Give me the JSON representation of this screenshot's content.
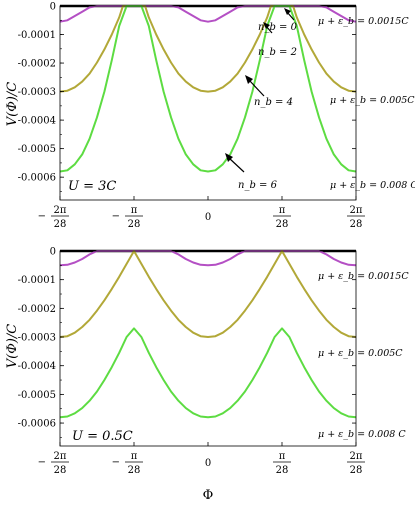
{
  "colors": {
    "series_nb0": "#b44fc4",
    "series_mid": "#b2a838",
    "series_high": "#5ddc42",
    "zero_line": "#000000"
  },
  "chart_data": [
    {
      "type": "line",
      "panel": "top",
      "xlabel": "",
      "ylabel": "V(Φ)/C",
      "x_ticks": [
        "-2π/28",
        "-π/28",
        "0",
        "π/28",
        "2π/28"
      ],
      "x_tick_values": [
        -2,
        -1,
        0,
        1,
        2
      ],
      "y_ticks": [
        "0",
        "-0.0001",
        "-0.0002",
        "-0.0003",
        "-0.0004",
        "-0.0005",
        "-0.0006"
      ],
      "y_tick_values": [
        0,
        -0.0001,
        -0.0002,
        -0.0003,
        -0.0004,
        -0.0005,
        -0.0006
      ],
      "xlim": [
        -2,
        2
      ],
      "ylim": [
        -0.00068,
        0
      ],
      "panel_label": "U = 3C",
      "annotations": [
        {
          "text": "n_b = 0"
        },
        {
          "text": "n_b = 2"
        },
        {
          "text": "n_b = 4"
        },
        {
          "text": "n_b = 6"
        }
      ],
      "series_labels": [
        "μ + ε_b = 0.0015C",
        "μ + ε_b = 0.005C",
        "μ + ε_b = 0.008 C"
      ],
      "series": [
        {
          "color": "#b44fc4",
          "x": [
            -2,
            -1.9,
            -1.8,
            -1.7,
            -1.6,
            -1.5,
            -1,
            -0.5,
            -0.4,
            -0.3,
            -0.2,
            -0.1,
            0,
            0.1,
            0.2,
            0.3,
            0.4,
            0.5,
            1,
            1.5,
            1.6,
            1.7,
            1.8,
            1.9,
            2
          ],
          "y": [
            -5.5e-05,
            -5e-05,
            -3.5e-05,
            -2e-05,
            -5e-06,
            0,
            0,
            0,
            -5e-06,
            -2e-05,
            -3.5e-05,
            -5e-05,
            -5.5e-05,
            -5e-05,
            -3.5e-05,
            -2e-05,
            -5e-06,
            0,
            0,
            0,
            -5e-06,
            -2e-05,
            -3.5e-05,
            -5e-05,
            -5.5e-05
          ]
        },
        {
          "color": "#b2a838",
          "x": [
            -2,
            -1.9,
            -1.8,
            -1.7,
            -1.6,
            -1.5,
            -1.4,
            -1.3,
            -1.2,
            -1.15,
            -1,
            -0.85,
            -0.8,
            -0.7,
            -0.6,
            -0.5,
            -0.4,
            -0.3,
            -0.2,
            -0.1,
            0,
            0.1,
            0.2,
            0.3,
            0.4,
            0.5,
            0.6,
            0.7,
            0.8,
            0.85,
            1,
            1.15,
            1.2,
            1.3,
            1.4,
            1.5,
            1.6,
            1.7,
            1.8,
            1.9,
            2
          ],
          "y": [
            -0.0003,
            -0.000297,
            -0.000285,
            -0.000265,
            -0.000237,
            -0.000198,
            -0.000152,
            -0.0001,
            -4e-05,
            0,
            0,
            0,
            -4e-05,
            -0.0001,
            -0.000152,
            -0.000198,
            -0.000237,
            -0.000265,
            -0.000285,
            -0.000297,
            -0.0003,
            -0.000297,
            -0.000285,
            -0.000265,
            -0.000237,
            -0.000198,
            -0.000152,
            -0.0001,
            -4e-05,
            0,
            0,
            0,
            -4e-05,
            -0.0001,
            -0.000152,
            -0.000198,
            -0.000237,
            -0.000265,
            -0.000285,
            -0.000297,
            -0.0003
          ]
        },
        {
          "color": "#5ddc42",
          "x": [
            -2,
            -1.9,
            -1.8,
            -1.7,
            -1.6,
            -1.5,
            -1.4,
            -1.3,
            -1.2,
            -1.1,
            -1,
            -0.9,
            -0.8,
            -0.7,
            -0.6,
            -0.5,
            -0.4,
            -0.3,
            -0.2,
            -0.1,
            0,
            0.1,
            0.2,
            0.3,
            0.4,
            0.5,
            0.6,
            0.7,
            0.8,
            0.9,
            1,
            1.1,
            1.2,
            1.3,
            1.4,
            1.5,
            1.6,
            1.7,
            1.8,
            1.9,
            2
          ],
          "y": [
            -0.00058,
            -0.000576,
            -0.000555,
            -0.00052,
            -0.000465,
            -0.00039,
            -0.0003,
            -0.00019,
            -7e-05,
            0,
            0,
            0,
            -7e-05,
            -0.00019,
            -0.0003,
            -0.00039,
            -0.000465,
            -0.00052,
            -0.000555,
            -0.000576,
            -0.00058,
            -0.000576,
            -0.000555,
            -0.00052,
            -0.000465,
            -0.00039,
            -0.0003,
            -0.00019,
            -7e-05,
            0,
            0,
            0,
            -7e-05,
            -0.00019,
            -0.0003,
            -0.00039,
            -0.000465,
            -0.00052,
            -0.000555,
            -0.000576,
            -0.00058
          ]
        }
      ]
    },
    {
      "type": "line",
      "panel": "bottom",
      "xlabel": "Φ",
      "ylabel": "V(Φ)/C",
      "x_ticks": [
        "-2π/28",
        "-π/28",
        "0",
        "π/28",
        "2π/28"
      ],
      "x_tick_values": [
        -2,
        -1,
        0,
        1,
        2
      ],
      "y_ticks": [
        "0",
        "-0.0001",
        "-0.0002",
        "-0.0003",
        "-0.0004",
        "-0.0005",
        "-0.0006"
      ],
      "y_tick_values": [
        0,
        -0.0001,
        -0.0002,
        -0.0003,
        -0.0004,
        -0.0005,
        -0.0006
      ],
      "xlim": [
        -2,
        2
      ],
      "ylim": [
        -0.00068,
        0
      ],
      "panel_label": "U = 0.5C",
      "series_labels": [
        "μ + ε_b = 0.0015C",
        "μ + ε_b = 0.005C",
        "μ + ε_b = 0.008 C"
      ],
      "series": [
        {
          "color": "#b44fc4",
          "x": [
            -2,
            -1.9,
            -1.8,
            -1.7,
            -1.6,
            -1.5,
            -1.4,
            -1.3,
            -1.2,
            -1.1,
            -1,
            -0.9,
            -0.8,
            -0.7,
            -0.6,
            -0.5,
            -0.4,
            -0.3,
            -0.2,
            -0.1,
            0,
            0.1,
            0.2,
            0.3,
            0.4,
            0.5,
            0.6,
            0.7,
            0.8,
            0.9,
            1,
            1.1,
            1.2,
            1.3,
            1.4,
            1.5,
            1.6,
            1.7,
            1.8,
            1.9,
            2
          ],
          "y": [
            -5e-05,
            -4.8e-05,
            -4e-05,
            -2.8e-05,
            -1.2e-05,
            0,
            0,
            0,
            0,
            0,
            0,
            0,
            0,
            0,
            0,
            0,
            -1.2e-05,
            -2.8e-05,
            -4e-05,
            -4.8e-05,
            -5e-05,
            -4.8e-05,
            -4e-05,
            -2.8e-05,
            -1.2e-05,
            0,
            0,
            0,
            0,
            0,
            0,
            0,
            0,
            0,
            0,
            0,
            -1.2e-05,
            -2.8e-05,
            -4e-05,
            -4.8e-05,
            -5e-05
          ]
        },
        {
          "color": "#b2a838",
          "x": [
            -2,
            -1.9,
            -1.8,
            -1.7,
            -1.6,
            -1.5,
            -1.4,
            -1.3,
            -1.2,
            -1.1,
            -1,
            -0.9,
            -0.8,
            -0.7,
            -0.6,
            -0.5,
            -0.4,
            -0.3,
            -0.2,
            -0.1,
            0,
            0.1,
            0.2,
            0.3,
            0.4,
            0.5,
            0.6,
            0.7,
            0.8,
            0.9,
            1,
            1.1,
            1.2,
            1.3,
            1.4,
            1.5,
            1.6,
            1.7,
            1.8,
            1.9,
            2
          ],
          "y": [
            -0.0003,
            -0.000297,
            -0.000285,
            -0.000265,
            -0.00024,
            -0.000208,
            -0.000172,
            -0.000132,
            -9e-05,
            -4.5e-05,
            0,
            -4.5e-05,
            -9e-05,
            -0.000132,
            -0.000172,
            -0.000208,
            -0.00024,
            -0.000265,
            -0.000285,
            -0.000297,
            -0.0003,
            -0.000297,
            -0.000285,
            -0.000265,
            -0.00024,
            -0.000208,
            -0.000172,
            -0.000132,
            -9e-05,
            -4.5e-05,
            0,
            -4.5e-05,
            -9e-05,
            -0.000132,
            -0.000172,
            -0.000208,
            -0.00024,
            -0.000265,
            -0.000285,
            -0.000297,
            -0.0003
          ]
        },
        {
          "color": "#5ddc42",
          "x": [
            -2,
            -1.9,
            -1.8,
            -1.7,
            -1.6,
            -1.5,
            -1.4,
            -1.3,
            -1.2,
            -1.1,
            -1,
            -0.9,
            -0.8,
            -0.7,
            -0.6,
            -0.5,
            -0.4,
            -0.3,
            -0.2,
            -0.1,
            0,
            0.1,
            0.2,
            0.3,
            0.4,
            0.5,
            0.6,
            0.7,
            0.8,
            0.9,
            1,
            1.1,
            1.2,
            1.3,
            1.4,
            1.5,
            1.6,
            1.7,
            1.8,
            1.9,
            2
          ],
          "y": [
            -0.00058,
            -0.000577,
            -0.000566,
            -0.000548,
            -0.000522,
            -0.00049,
            -0.00045,
            -0.000405,
            -0.000355,
            -0.0003,
            -0.00027,
            -0.0003,
            -0.000355,
            -0.000405,
            -0.00045,
            -0.00049,
            -0.000522,
            -0.000548,
            -0.000566,
            -0.000577,
            -0.00058,
            -0.000577,
            -0.000566,
            -0.000548,
            -0.000522,
            -0.00049,
            -0.00045,
            -0.000405,
            -0.000355,
            -0.0003,
            -0.00027,
            -0.0003,
            -0.000355,
            -0.000405,
            -0.00045,
            -0.00049,
            -0.000522,
            -0.000548,
            -0.000566,
            -0.000577,
            -0.00058
          ]
        }
      ]
    }
  ]
}
